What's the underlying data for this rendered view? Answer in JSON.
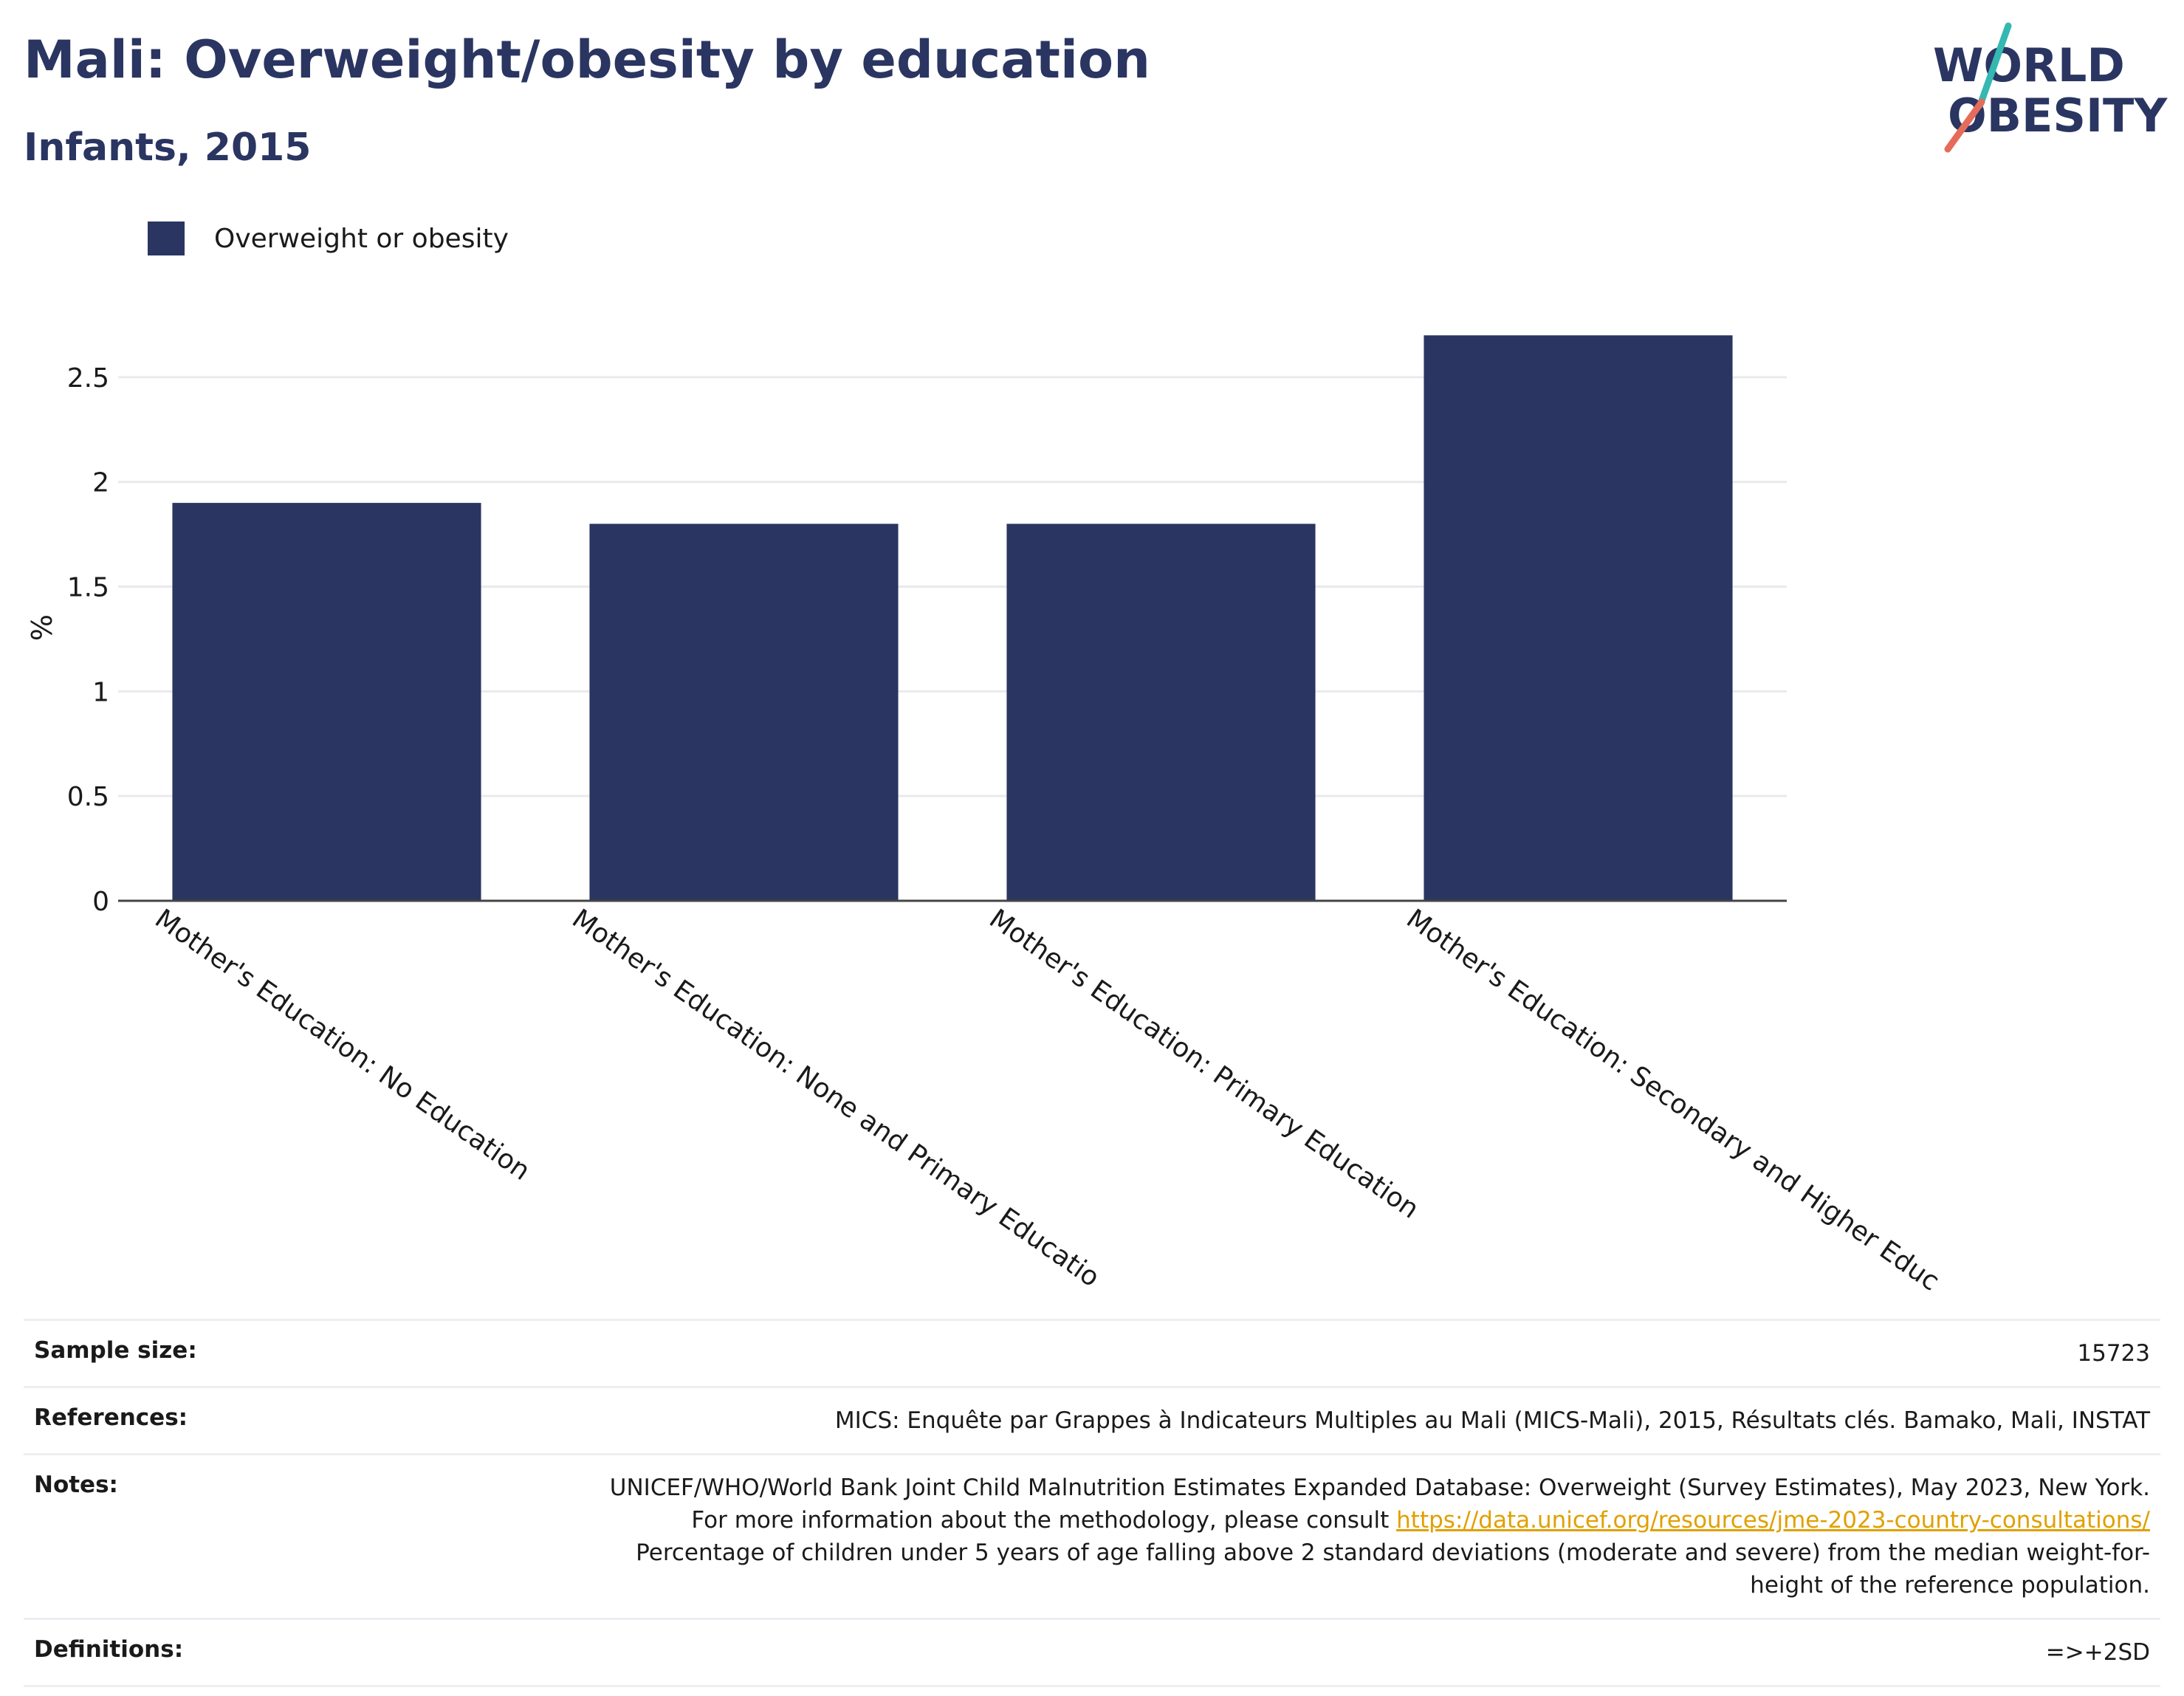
{
  "header": {
    "title": "Mali: Overweight/obesity by education",
    "subtitle": "Infants, 2015"
  },
  "logo": {
    "line1": "WORLD",
    "line2": "OBESITY",
    "colors": {
      "navy": "#2a3561",
      "teal": "#35b7b2",
      "coral": "#e56b5a"
    }
  },
  "chart_data": {
    "type": "bar",
    "categories": [
      "Mother's Education: No Education",
      "Mother's Education: None and Primary Educatio",
      "Mother's Education: Primary Education",
      "Mother's Education: Secondary and Higher Educ"
    ],
    "series": [
      {
        "name": "Overweight or obesity",
        "values": [
          1.9,
          1.8,
          1.8,
          2.7
        ],
        "color": "#2a3561"
      }
    ],
    "ylabel": "%",
    "ylim": [
      0,
      2.75
    ],
    "yticks": [
      0,
      0.5,
      1,
      1.5,
      2,
      2.5
    ],
    "ytick_labels": [
      "0",
      "0.5",
      "1",
      "1.5",
      "2",
      "2.5"
    ],
    "grid": true,
    "legend_position": "top-left"
  },
  "info": {
    "sample_size_label": "Sample size:",
    "sample_size_value": "15723",
    "references_label": "References:",
    "references_value": "MICS: Enquête par Grappes à Indicateurs Multiples au Mali (MICS-Mali), 2015, Résultats clés. Bamako, Mali, INSTAT",
    "notes_label": "Notes:",
    "notes_text_1": "UNICEF/WHO/World Bank Joint Child Malnutrition Estimates Expanded Database: Overweight (Survey Estimates), May 2023, New York. For more information about the methodology, please consult ",
    "notes_link": "https://data.unicef.org/resources/jme-2023-country-consultations/",
    "notes_text_2": " Percentage of children under 5 years of age falling above 2 standard deviations (moderate and severe) from the median weight-for-height of the reference population.",
    "definitions_label": "Definitions:",
    "definitions_value": "=>+2SD"
  }
}
